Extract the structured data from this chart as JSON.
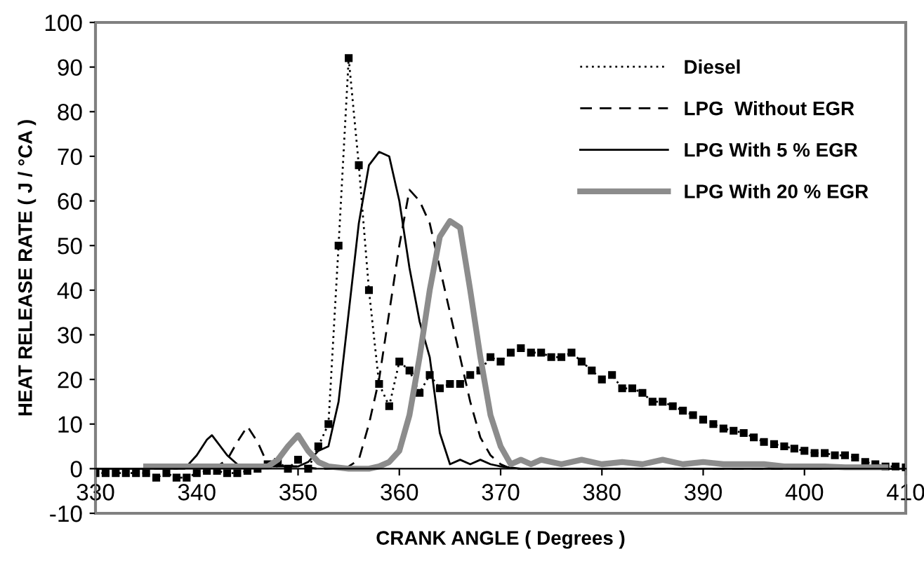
{
  "chart_data": {
    "type": "line",
    "xlabel": "CRANK ANGLE ( Degrees )",
    "ylabel": "HEAT RELEASE RATE ( J / °CA )",
    "xlim": [
      330,
      410
    ],
    "ylim": [
      -10,
      100
    ],
    "xticks": [
      330,
      340,
      350,
      360,
      370,
      380,
      390,
      400,
      410
    ],
    "yticks": [
      -10,
      0,
      10,
      20,
      30,
      40,
      50,
      60,
      70,
      80,
      90,
      100
    ],
    "legend": "top right",
    "series": [
      {
        "name": "Diesel",
        "color": "#000000",
        "line_style": "dotted",
        "marker": "square",
        "x": [
          330,
          331,
          332,
          333,
          334,
          335,
          336,
          337,
          338,
          339,
          340,
          341,
          342,
          343,
          344,
          345,
          346,
          347,
          348,
          349,
          350,
          351,
          352,
          353,
          354,
          355,
          356,
          357,
          358,
          359,
          360,
          361,
          362,
          363,
          364,
          365,
          366,
          367,
          368,
          369,
          370,
          371,
          372,
          373,
          374,
          375,
          376,
          377,
          378,
          379,
          380,
          381,
          382,
          383,
          384,
          385,
          386,
          387,
          388,
          389,
          390,
          391,
          392,
          393,
          394,
          395,
          396,
          397,
          398,
          399,
          400,
          401,
          402,
          403,
          404,
          405,
          406,
          407,
          408,
          409,
          410
        ],
        "values": [
          -1,
          -1,
          -1,
          -1,
          -1,
          -1,
          -2,
          -1,
          -2,
          -2,
          -1,
          -0.5,
          -0.5,
          -1,
          -1,
          -0.5,
          0,
          1,
          1.5,
          0,
          2,
          0,
          5,
          10,
          50,
          92,
          68,
          40,
          19,
          14,
          24,
          22,
          17,
          21,
          18,
          19,
          19,
          21,
          22,
          25,
          24,
          26,
          27,
          26,
          26,
          25,
          25,
          26,
          24,
          22,
          20,
          21,
          18,
          18,
          17,
          15,
          15,
          14,
          13,
          12,
          11,
          10,
          9,
          8.5,
          8,
          7,
          6,
          5.5,
          5,
          4.5,
          4,
          3.5,
          3.5,
          3,
          3,
          2.5,
          1.5,
          1,
          0.5,
          0.5,
          0.3
        ]
      },
      {
        "name": "LPG  Without EGR",
        "color": "#000000",
        "line_style": "dashed",
        "marker": "none",
        "x": [
          330,
          336,
          340,
          342,
          343,
          344,
          345,
          346,
          347,
          348,
          350,
          352,
          354,
          355,
          356,
          357,
          358,
          359,
          360,
          361,
          362,
          363,
          364,
          365,
          366,
          367,
          368,
          369,
          370,
          371,
          375,
          380,
          390,
          400,
          410
        ],
        "values": [
          0,
          0,
          0,
          0.5,
          2,
          6,
          9.5,
          6,
          1,
          0.5,
          0.5,
          0,
          0,
          0.5,
          2,
          10,
          20,
          35,
          50,
          62.5,
          60,
          55,
          45,
          35,
          25,
          15,
          7,
          3,
          1,
          0,
          0,
          0,
          0,
          0,
          0
        ]
      },
      {
        "name": "LPG With 5 % EGR",
        "color": "#000000",
        "line_style": "solid",
        "marker": "none",
        "x": [
          330,
          335,
          338,
          339,
          340,
          341,
          341.5,
          342,
          343,
          344,
          345,
          347,
          350,
          351,
          352,
          353,
          354,
          355,
          356,
          357,
          358,
          359,
          360,
          361,
          362,
          363,
          364,
          365,
          366,
          367,
          368,
          369,
          370,
          372,
          380,
          390,
          400,
          410
        ],
        "values": [
          0,
          0,
          0,
          0.5,
          3,
          6.5,
          7.5,
          6,
          3,
          1,
          0.5,
          0.5,
          0.5,
          1.5,
          4,
          5,
          15,
          35,
          55,
          68,
          71,
          70,
          60,
          45,
          33,
          25,
          8,
          1,
          2,
          1,
          2,
          1,
          0.5,
          0,
          0,
          0,
          0,
          0
        ]
      },
      {
        "name": "LPG With 20 % EGR",
        "color": "#8c8c8c",
        "line_style": "solid",
        "marker": "none",
        "x": [
          335,
          340,
          345,
          347,
          348,
          349,
          350,
          351,
          352,
          353,
          355,
          357,
          358,
          359,
          360,
          361,
          362,
          363,
          364,
          365,
          366,
          367,
          368,
          369,
          370,
          371,
          372,
          373,
          374,
          376,
          378,
          380,
          382,
          384,
          386,
          388,
          390,
          392,
          394,
          396,
          398,
          400,
          402,
          404,
          406,
          408
        ],
        "values": [
          0.5,
          0.5,
          0.5,
          0.5,
          2,
          5,
          7.5,
          4,
          1.5,
          0.5,
          0,
          0,
          0.5,
          1.5,
          4,
          12,
          25,
          40,
          52,
          55.5,
          54,
          40,
          25,
          12,
          5,
          1,
          2,
          1,
          2,
          1,
          2,
          1,
          1.5,
          1,
          2,
          1,
          1.5,
          1,
          1,
          1,
          0.5,
          0.5,
          0.5,
          0.3,
          0.3,
          0.3
        ]
      }
    ]
  }
}
